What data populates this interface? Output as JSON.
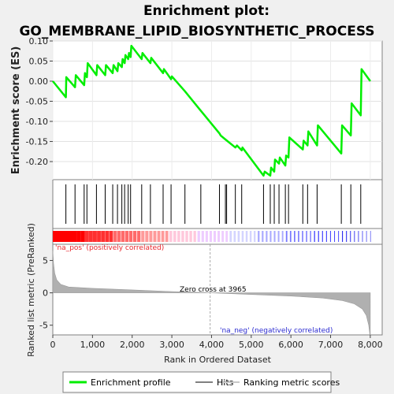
{
  "chart_data": {
    "type": "line",
    "title_line1": "Enrichment plot:",
    "title_line2": "GO_MEMBRANE_LIPID_BIOSYNTHETIC_PROCESS",
    "es_panel": {
      "ylabel": "Enrichment score (ES)",
      "ylim": [
        -0.245,
        0.1
      ],
      "yticks": [
        "0.10",
        "0.05",
        "0.00",
        "-0.05",
        "-0.10",
        "-0.15",
        "-0.20"
      ],
      "ytick_values": [
        0.1,
        0.05,
        0.0,
        -0.05,
        -0.1,
        -0.15,
        -0.2
      ],
      "series_color": "#00ee00",
      "points": [
        [
          0,
          0.0
        ],
        [
          330,
          -0.04
        ],
        [
          340,
          0.01
        ],
        [
          560,
          -0.015
        ],
        [
          580,
          0.015
        ],
        [
          790,
          -0.01
        ],
        [
          810,
          0.02
        ],
        [
          860,
          0.01
        ],
        [
          880,
          0.045
        ],
        [
          1100,
          0.015
        ],
        [
          1120,
          0.04
        ],
        [
          1320,
          0.015
        ],
        [
          1340,
          0.04
        ],
        [
          1510,
          0.02
        ],
        [
          1530,
          0.04
        ],
        [
          1630,
          0.025
        ],
        [
          1650,
          0.045
        ],
        [
          1740,
          0.035
        ],
        [
          1760,
          0.055
        ],
        [
          1810,
          0.045
        ],
        [
          1830,
          0.065
        ],
        [
          1900,
          0.055
        ],
        [
          1920,
          0.07
        ],
        [
          1960,
          0.06
        ],
        [
          1980,
          0.088
        ],
        [
          2240,
          0.055
        ],
        [
          2260,
          0.07
        ],
        [
          2460,
          0.045
        ],
        [
          2480,
          0.058
        ],
        [
          2780,
          0.02
        ],
        [
          2800,
          0.03
        ],
        [
          2980,
          0.005
        ],
        [
          3000,
          0.012
        ],
        [
          3330,
          -0.025
        ],
        [
          3700,
          -0.07
        ],
        [
          4200,
          -0.13
        ],
        [
          4230,
          -0.135
        ],
        [
          4350,
          -0.145
        ],
        [
          4600,
          -0.165
        ],
        [
          4640,
          -0.16
        ],
        [
          4760,
          -0.172
        ],
        [
          4780,
          -0.165
        ],
        [
          5310,
          -0.235
        ],
        [
          5340,
          -0.225
        ],
        [
          5480,
          -0.235
        ],
        [
          5500,
          -0.215
        ],
        [
          5580,
          -0.225
        ],
        [
          5600,
          -0.195
        ],
        [
          5700,
          -0.205
        ],
        [
          5720,
          -0.19
        ],
        [
          5860,
          -0.21
        ],
        [
          5880,
          -0.185
        ],
        [
          5940,
          -0.19
        ],
        [
          5960,
          -0.14
        ],
        [
          6300,
          -0.17
        ],
        [
          6320,
          -0.148
        ],
        [
          6420,
          -0.16
        ],
        [
          6440,
          -0.125
        ],
        [
          6660,
          -0.16
        ],
        [
          6680,
          -0.11
        ],
        [
          7270,
          -0.18
        ],
        [
          7290,
          -0.11
        ],
        [
          7510,
          -0.135
        ],
        [
          7530,
          -0.055
        ],
        [
          7760,
          -0.085
        ],
        [
          7780,
          0.03
        ],
        [
          8000,
          0.0
        ]
      ]
    },
    "hits_panel": {
      "hit_positions": [
        330,
        560,
        790,
        860,
        1100,
        1320,
        1510,
        1630,
        1740,
        1810,
        1900,
        1960,
        2240,
        2460,
        2780,
        2980,
        3330,
        3730,
        4200,
        4350,
        4380,
        4600,
        4760,
        5310,
        5480,
        5580,
        5700,
        5860,
        5940,
        6300,
        6420,
        6660,
        7270,
        7510,
        7760
      ]
    },
    "heatmap": {
      "pos_label": "'na_pos' (positively correlated)",
      "neg_label": "'na_neg' (negatively correlated)",
      "pos_label_color": "#e8272e",
      "neg_label_color": "#2a2ad0",
      "colors": [
        "#ff0000",
        "#ff3030",
        "#ff6a6a",
        "#ff9a9a",
        "#ffc8dc",
        "#eeccff",
        "#d4d4ff",
        "#aaaaff",
        "#7a7aff",
        "#4c4cff",
        "#0000ee"
      ]
    },
    "rank_panel": {
      "ylabel": "Ranked list metric (PreRanked)",
      "ylim": [
        -6.5,
        7.5
      ],
      "yticks": [
        "5",
        "0",
        "-5"
      ],
      "ytick_values": [
        5,
        0,
        -5
      ],
      "zero_cross_label": "Zero cross at 3965",
      "zero_cross": 3965,
      "metric_curve": [
        [
          0,
          6.5
        ],
        [
          20,
          4.5
        ],
        [
          50,
          3
        ],
        [
          100,
          2
        ],
        [
          200,
          1.3
        ],
        [
          400,
          0.9
        ],
        [
          1000,
          0.7
        ],
        [
          2000,
          0.45
        ],
        [
          3000,
          0.2
        ],
        [
          3965,
          0.0
        ],
        [
          5000,
          -0.25
        ],
        [
          6000,
          -0.5
        ],
        [
          6800,
          -0.8
        ],
        [
          7300,
          -1.2
        ],
        [
          7600,
          -1.7
        ],
        [
          7800,
          -2.5
        ],
        [
          7900,
          -3.5
        ],
        [
          7960,
          -5.0
        ],
        [
          7990,
          -6.5
        ],
        [
          8000,
          -6.5
        ]
      ],
      "fill_color": "#b0b0b0"
    },
    "xaxis": {
      "xlabel": "Rank in Ordered Dataset",
      "xlim": [
        0,
        8300
      ],
      "xticks": [
        "0",
        "1,000",
        "2,000",
        "3,000",
        "4,000",
        "5,000",
        "6,000",
        "7,000",
        "8,000"
      ],
      "xtick_values": [
        0,
        1000,
        2000,
        3000,
        4000,
        5000,
        6000,
        7000,
        8000
      ]
    },
    "legend": {
      "placement": "bottom",
      "items": [
        {
          "label": "Enrichment profile",
          "color": "#00ee00"
        },
        {
          "label": "Hits",
          "color": "#808080"
        },
        {
          "label": "Ranking metric scores",
          "color": "#c8c8c8"
        }
      ]
    }
  }
}
